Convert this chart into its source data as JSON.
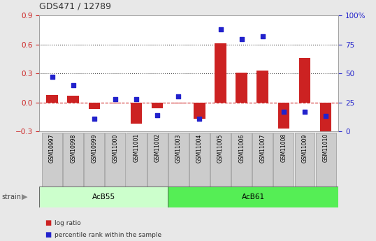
{
  "title": "GDS471 / 12789",
  "samples": [
    "GSM10997",
    "GSM10998",
    "GSM10999",
    "GSM11000",
    "GSM11001",
    "GSM11002",
    "GSM11003",
    "GSM11004",
    "GSM11005",
    "GSM11006",
    "GSM11007",
    "GSM11008",
    "GSM11009",
    "GSM11010"
  ],
  "log_ratio": [
    0.08,
    0.07,
    -0.07,
    -0.01,
    -0.22,
    -0.06,
    -0.01,
    -0.17,
    0.61,
    0.31,
    0.33,
    -0.27,
    0.46,
    -0.3
  ],
  "percentile_rank": [
    47,
    40,
    11,
    28,
    28,
    14,
    30,
    11,
    88,
    80,
    82,
    17,
    17,
    13
  ],
  "groups": [
    {
      "label": "AcB55",
      "start": 0,
      "end": 5,
      "color": "#ccffcc"
    },
    {
      "label": "AcB61",
      "start": 6,
      "end": 13,
      "color": "#55ee55"
    }
  ],
  "bar_color_red": "#cc2222",
  "bar_color_blue": "#2222cc",
  "ylim_left": [
    -0.3,
    0.9
  ],
  "ylim_right": [
    0,
    100
  ],
  "yticks_left": [
    -0.3,
    0.0,
    0.3,
    0.6,
    0.9
  ],
  "yticks_right": [
    0,
    25,
    50,
    75,
    100
  ],
  "hlines": [
    0.3,
    0.6
  ],
  "hline_zero_color": "#cc2222",
  "hline_color": "#444444",
  "background_color": "#e8e8e8",
  "plot_bg_color": "#ffffff",
  "xtick_box_color": "#cccccc",
  "xtick_box_edge": "#999999",
  "strain_label": "strain",
  "legend_entries": [
    "log ratio",
    "percentile rank within the sample"
  ]
}
